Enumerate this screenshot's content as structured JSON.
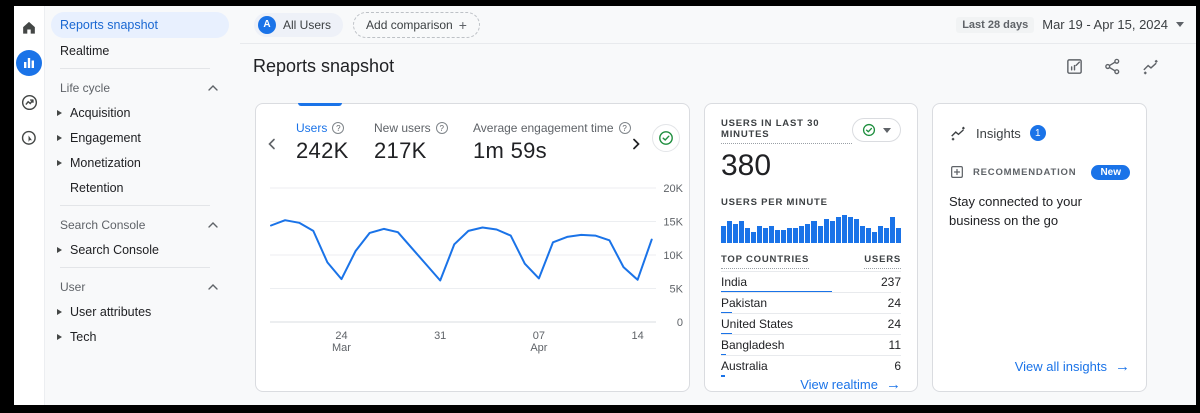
{
  "icons": {
    "plus": "+",
    "question": "?",
    "arrow_right": "→",
    "left_rail": [
      {
        "name": "home-icon",
        "active": false
      },
      {
        "name": "reports-icon",
        "active": true
      },
      {
        "name": "explore-icon",
        "active": false
      },
      {
        "name": "advertising-icon",
        "active": false
      }
    ],
    "header_actions": [
      "customize-report-icon",
      "share-icon",
      "insights-icon"
    ]
  },
  "sidebar": {
    "items": [
      {
        "type": "selected",
        "label": "Reports snapshot"
      },
      {
        "type": "item",
        "label": "Realtime"
      },
      {
        "type": "divider"
      },
      {
        "type": "section",
        "label": "Life cycle"
      },
      {
        "type": "subitem",
        "label": "Acquisition"
      },
      {
        "type": "subitem",
        "label": "Engagement"
      },
      {
        "type": "subitem",
        "label": "Monetization"
      },
      {
        "type": "item-indent",
        "label": "Retention"
      },
      {
        "type": "divider"
      },
      {
        "type": "section",
        "label": "Search Console"
      },
      {
        "type": "subitem",
        "label": "Search Console"
      },
      {
        "type": "divider"
      },
      {
        "type": "section",
        "label": "User"
      },
      {
        "type": "subitem",
        "label": "User attributes"
      },
      {
        "type": "subitem",
        "label": "Tech"
      }
    ]
  },
  "topbar": {
    "audience_avatar": "A",
    "audience_label": "All Users",
    "add_comparison_label": "Add comparison",
    "range_badge": "Last 28 days",
    "date_range": "Mar 19 - Apr 15, 2024"
  },
  "header": {
    "title": "Reports snapshot"
  },
  "overview": {
    "metrics": [
      {
        "label": "Users",
        "value": "242K",
        "selected": true
      },
      {
        "label": "New users",
        "value": "217K",
        "selected": false
      },
      {
        "label": "Average engagement time",
        "value": "1m 59s",
        "selected": false
      }
    ]
  },
  "chart_data": [
    {
      "type": "line",
      "title": "Users by day (Mar 19 - Apr 15, 2024)",
      "ylabel": "Users",
      "ylim": [
        0,
        20000
      ],
      "grid": true,
      "line_color": "#1a73e8",
      "x": [
        "Mar 19",
        "Mar 20",
        "Mar 21",
        "Mar 22",
        "Mar 23",
        "Mar 24",
        "Mar 25",
        "Mar 26",
        "Mar 27",
        "Mar 28",
        "Mar 29",
        "Mar 30",
        "Mar 31",
        "Apr 1",
        "Apr 2",
        "Apr 3",
        "Apr 4",
        "Apr 5",
        "Apr 6",
        "Apr 7",
        "Apr 8",
        "Apr 9",
        "Apr 10",
        "Apr 11",
        "Apr 12",
        "Apr 13",
        "Apr 14",
        "Apr 15"
      ],
      "series": [
        {
          "name": "Users",
          "values": [
            14400,
            15200,
            14800,
            13600,
            8900,
            6400,
            10600,
            13300,
            13900,
            13400,
            11000,
            8600,
            6200,
            11600,
            13600,
            14100,
            13800,
            12900,
            8700,
            6500,
            11900,
            12700,
            13000,
            12900,
            12200,
            8200,
            6300,
            12300
          ]
        }
      ],
      "y_ticks": [
        {
          "v": 20000,
          "label": "20K"
        },
        {
          "v": 15000,
          "label": "15K"
        },
        {
          "v": 10000,
          "label": "10K"
        },
        {
          "v": 5000,
          "label": "5K"
        },
        {
          "v": 0,
          "label": "0"
        }
      ],
      "x_ticks": [
        {
          "i": 5,
          "label": "24",
          "sub": "Mar"
        },
        {
          "i": 12,
          "label": "31",
          "sub": ""
        },
        {
          "i": 19,
          "label": "07",
          "sub": "Apr"
        },
        {
          "i": 26,
          "label": "14",
          "sub": ""
        }
      ]
    },
    {
      "type": "bar",
      "title": "Users per minute (last 30 minutes)",
      "ylim": [
        0,
        13
      ],
      "bar_color": "#1a73e8",
      "values": [
        8,
        10,
        9,
        10,
        7,
        5,
        8,
        7,
        8,
        6,
        6,
        7,
        7,
        8,
        9,
        10,
        8,
        11,
        10,
        12,
        13,
        12,
        11,
        8,
        7,
        5,
        8,
        7,
        12,
        7
      ]
    }
  ],
  "realtime": {
    "title": "USERS IN LAST 30 MINUTES",
    "value": "380",
    "per_minute_label": "USERS PER MINUTE",
    "countries_col": "TOP COUNTRIES",
    "users_col": "USERS",
    "countries": [
      {
        "name": "India",
        "users": "237"
      },
      {
        "name": "Pakistan",
        "users": "24"
      },
      {
        "name": "United States",
        "users": "24"
      },
      {
        "name": "Bangladesh",
        "users": "11"
      },
      {
        "name": "Australia",
        "users": "6"
      }
    ],
    "link_label": "View realtime"
  },
  "insights": {
    "title": "Insights",
    "count": "1",
    "recommendation_label": "RECOMMENDATION",
    "new_badge": "New",
    "text": "Stay connected to your business on the go",
    "link_label": "View all insights"
  },
  "colors": {
    "accent": "#1a73e8",
    "selected_pill_bg": "#e8f0fe",
    "green_check": "#1e8e3e",
    "text": "#202124",
    "muted": "#5f6368",
    "card_border": "#dadce0",
    "background": "#f8f9fa"
  }
}
